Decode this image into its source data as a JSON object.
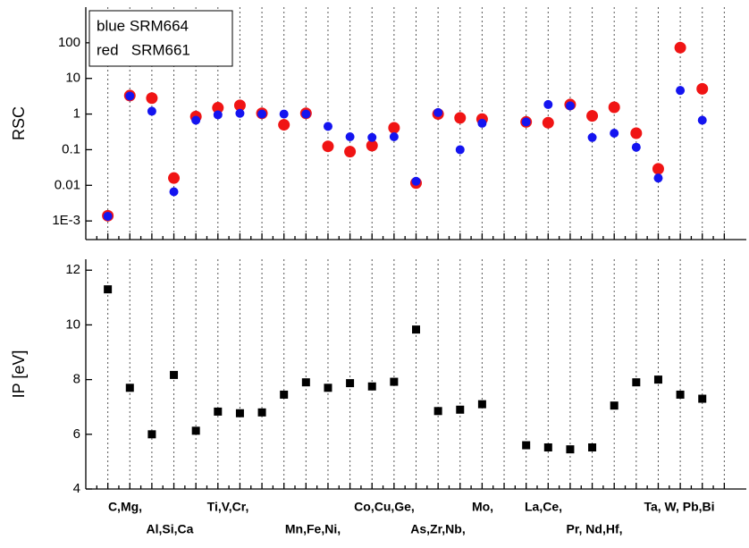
{
  "chart_data": [
    {
      "type": "scatter",
      "y_label": "RSC",
      "log_scale": true,
      "categories": [
        null,
        null,
        null,
        null,
        null,
        null,
        null,
        null,
        null,
        null,
        null,
        null,
        null,
        null,
        null,
        null,
        null,
        null,
        null,
        null,
        null,
        null,
        null,
        null,
        null,
        null,
        null,
        null,
        null
      ],
      "ylim": [
        0.0003,
        1000
      ],
      "yticks": [
        {
          "value": 0.001,
          "label": "1E-3"
        },
        0.01,
        0.1,
        1,
        10,
        100
      ],
      "grid": true,
      "legend": "upper left",
      "series": [
        {
          "name": "blue SRM664",
          "color": "#1414f0",
          "values": [
            0.00135,
            3.2,
            1.2,
            0.0066,
            0.67,
            0.95,
            1.05,
            1.0,
            1.0,
            1.0,
            0.45,
            0.23,
            0.22,
            0.23,
            0.013,
            1.1,
            0.1,
            0.55,
            null,
            0.6,
            1.85,
            1.7,
            0.22,
            0.29,
            0.117,
            0.016,
            4.6,
            0.67,
            null
          ]
        },
        {
          "name": "red   SRM661",
          "color": "#f01414",
          "values": [
            0.0014,
            3.3,
            2.8,
            0.016,
            0.85,
            1.5,
            1.75,
            1.05,
            0.5,
            1.05,
            0.124,
            0.088,
            0.13,
            0.41,
            0.0116,
            1.0,
            0.78,
            0.72,
            null,
            0.6,
            0.57,
            1.85,
            0.89,
            1.55,
            0.29,
            0.029,
            73,
            5.1,
            null
          ]
        }
      ]
    },
    {
      "type": "scatter",
      "y_label": "IP [eV]",
      "categories": [
        null,
        null,
        null,
        null,
        null,
        null,
        null,
        null,
        null,
        null,
        null,
        null,
        null,
        null,
        null,
        null,
        null,
        null,
        null,
        null,
        null,
        null,
        null,
        null,
        null,
        null,
        null,
        null,
        null
      ],
      "ylim": [
        4,
        12.4
      ],
      "yticks": [
        4,
        6,
        8,
        10,
        12
      ],
      "grid": true,
      "series": [
        {
          "color": "#000000",
          "values": [
            11.3,
            7.7,
            6.0,
            8.17,
            6.13,
            6.83,
            6.77,
            6.8,
            7.45,
            7.9,
            7.7,
            7.87,
            7.75,
            7.92,
            9.83,
            6.85,
            6.9,
            7.1,
            null,
            5.6,
            5.52,
            5.45,
            5.52,
            7.05,
            7.9,
            8.0,
            7.45,
            7.3,
            null
          ]
        }
      ],
      "x_labels": [
        "C,Mg,",
        "Al,Si,Ca",
        "Ti,V,Cr,",
        "Mn,Fe,Ni,",
        "Co,Cu,Ge,",
        "As,Zr,Nb,",
        "Mo,",
        "La,Ce,",
        "Pr, Nd,Hf,",
        "Ta, W, Pb,Bi"
      ]
    }
  ]
}
